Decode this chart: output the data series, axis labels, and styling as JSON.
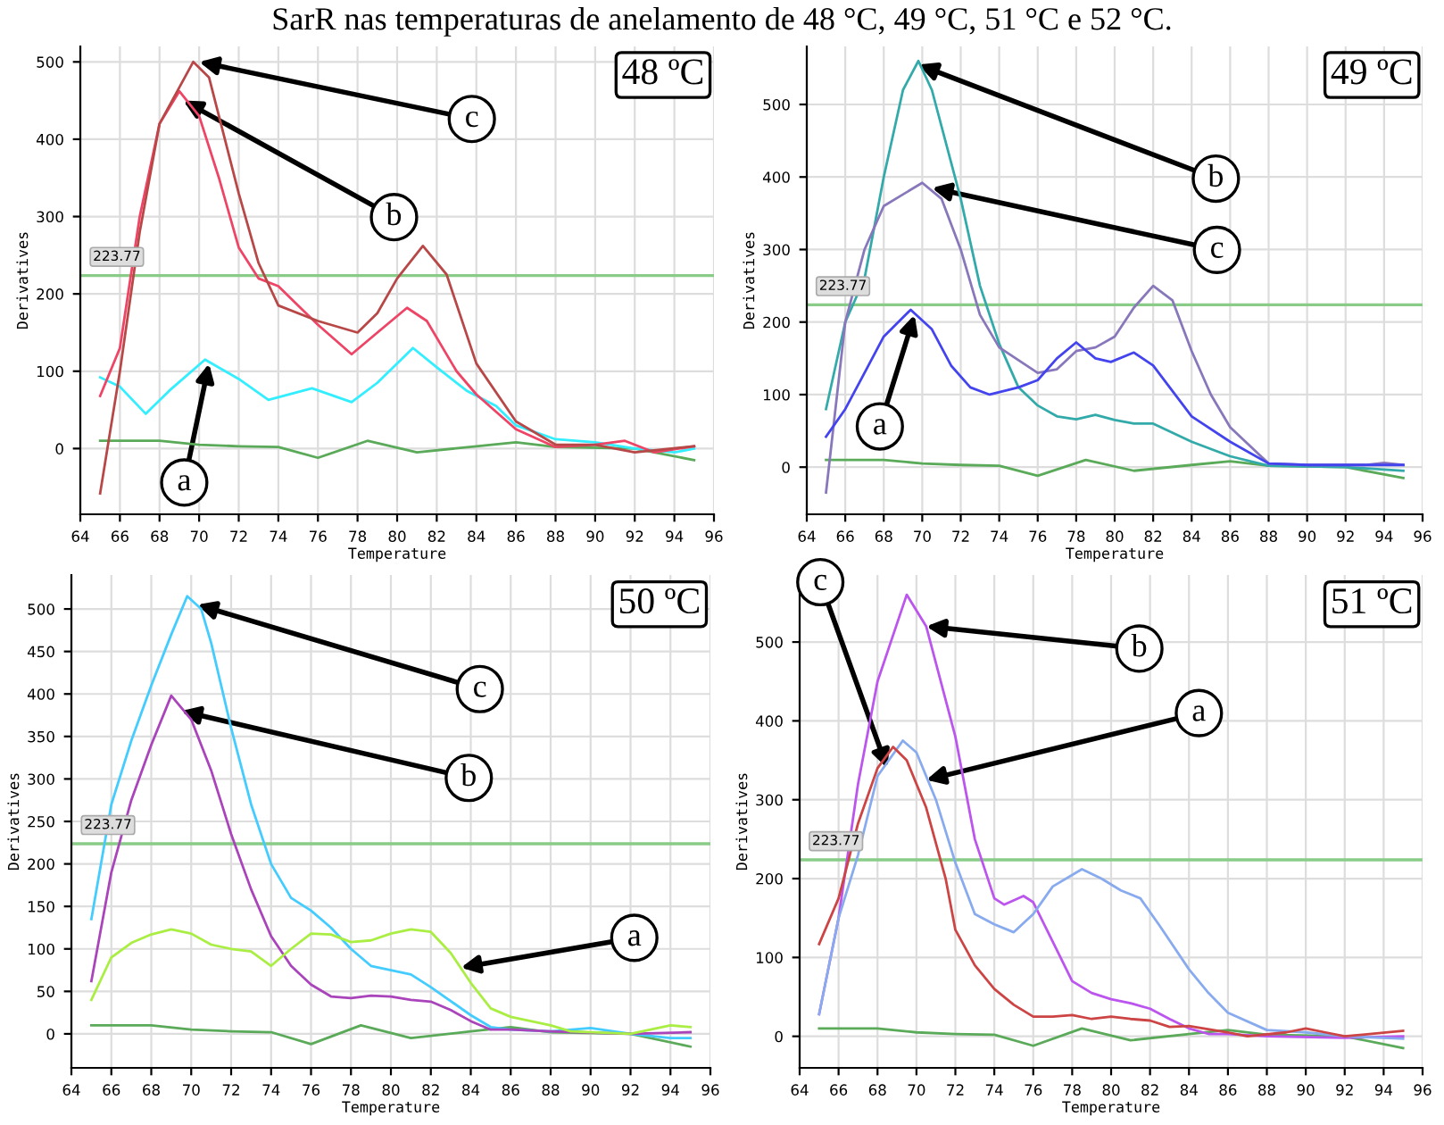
{
  "chart_data": [
    {
      "type": "line",
      "title": "SarR nas temperaturas de anelamento de 48 °C, 49 °C, 51 °C e 52 °C.",
      "xlabel": "Temperature",
      "ylabel": "Derivatives",
      "xlim": [
        64,
        96
      ],
      "xticks": [
        64,
        66,
        68,
        70,
        72,
        74,
        76,
        78,
        80,
        82,
        84,
        86,
        88,
        90,
        92,
        94,
        96
      ],
      "ylim": [
        -85,
        520
      ],
      "yticks": [
        0,
        100,
        200,
        300,
        400,
        500
      ],
      "grid": true,
      "ref_lines": [
        {
          "axis": "y",
          "value": 223.77,
          "label": "223.77",
          "color": "#88cc88"
        }
      ],
      "annotations": [
        "48 ºC",
        {
          "text": "c",
          "x": 70,
          "y": 500
        },
        {
          "text": "b",
          "x": 69.2,
          "y": 450
        },
        {
          "text": "a",
          "x": 70.5,
          "y": 110
        }
      ],
      "series": [
        {
          "color": "#5aaa5a",
          "x": [
            65,
            68,
            70,
            72,
            74,
            76,
            78.5,
            81,
            84,
            86,
            88,
            92,
            95
          ],
          "values": [
            10,
            10,
            5,
            3,
            2,
            -12,
            10,
            -5,
            3,
            8,
            2,
            0,
            -15
          ]
        },
        {
          "color": "#33eeff",
          "x": [
            65,
            66,
            67.3,
            68.5,
            70.3,
            72,
            73.5,
            75.7,
            77.7,
            79,
            80.8,
            82,
            83.5,
            85,
            86,
            88,
            90,
            92,
            94,
            95
          ],
          "values": [
            92,
            80,
            45,
            75,
            115,
            90,
            63,
            78,
            60,
            85,
            130,
            105,
            75,
            55,
            30,
            12,
            8,
            0,
            -5,
            0
          ]
        },
        {
          "color": "#ee4466",
          "x": [
            65,
            66,
            67,
            68,
            69,
            70,
            71,
            72,
            73,
            74,
            75,
            76,
            77.7,
            79,
            80.5,
            81.5,
            83,
            84,
            86,
            88,
            90,
            91.5,
            93,
            95
          ],
          "values": [
            68,
            130,
            300,
            420,
            462,
            430,
            350,
            260,
            220,
            210,
            185,
            160,
            122,
            150,
            182,
            165,
            100,
            70,
            25,
            2,
            5,
            10,
            -5,
            3
          ]
        },
        {
          "color": "#b84848",
          "x": [
            65,
            66,
            67,
            68,
            69.7,
            70.5,
            72,
            73,
            74,
            76,
            78,
            79,
            80,
            81.3,
            82.5,
            84,
            86,
            88,
            90,
            92,
            95
          ],
          "values": [
            -58,
            100,
            280,
            420,
            500,
            480,
            330,
            240,
            185,
            165,
            150,
            175,
            220,
            262,
            225,
            110,
            35,
            5,
            5,
            -5,
            3
          ]
        }
      ]
    },
    {
      "type": "line",
      "xlabel": "Temperature",
      "ylabel": "Derivatives",
      "xlim": [
        64,
        96
      ],
      "xticks": [
        64,
        66,
        68,
        70,
        72,
        74,
        76,
        78,
        80,
        82,
        84,
        86,
        88,
        90,
        92,
        94,
        96
      ],
      "ylim": [
        -65,
        580
      ],
      "yticks": [
        0,
        100,
        200,
        300,
        400,
        500
      ],
      "grid": true,
      "ref_lines": [
        {
          "axis": "y",
          "value": 223.77,
          "label": "223.77",
          "color": "#88cc88"
        }
      ],
      "annotations": [
        "49 ºC",
        {
          "text": "b",
          "x": 69.8,
          "y": 555
        },
        {
          "text": "c",
          "x": 70.5,
          "y": 385
        },
        {
          "text": "a",
          "x": 69.6,
          "y": 210
        }
      ],
      "series": [
        {
          "color": "#5aaa5a",
          "x": [
            65,
            68,
            70,
            72,
            74,
            76,
            78.5,
            81,
            84,
            86,
            88,
            92,
            95
          ],
          "values": [
            10,
            10,
            5,
            3,
            2,
            -12,
            10,
            -5,
            3,
            8,
            2,
            0,
            -15
          ]
        },
        {
          "color": "#33aaaa",
          "x": [
            65,
            66,
            67,
            68,
            69,
            69.8,
            70.5,
            72,
            73,
            74,
            75,
            76,
            77,
            78,
            79,
            80,
            81,
            82,
            84,
            86,
            88,
            92,
            95
          ],
          "values": [
            80,
            200,
            260,
            400,
            520,
            560,
            520,
            370,
            250,
            170,
            110,
            85,
            70,
            66,
            72,
            65,
            60,
            60,
            35,
            15,
            2,
            0,
            -5
          ]
        },
        {
          "color": "#8877bb",
          "x": [
            65,
            66,
            67,
            68,
            70,
            71,
            72,
            73,
            74,
            76,
            77,
            78,
            79,
            80,
            81,
            82,
            83,
            84,
            85,
            86,
            88,
            90,
            93,
            94,
            95
          ],
          "values": [
            -35,
            200,
            300,
            360,
            392,
            370,
            300,
            210,
            165,
            130,
            135,
            160,
            165,
            180,
            220,
            250,
            230,
            160,
            100,
            55,
            5,
            3,
            3,
            6,
            3
          ]
        },
        {
          "color": "#4444ee",
          "x": [
            65,
            66,
            67,
            68,
            69.4,
            70.5,
            71.5,
            72.5,
            73.5,
            75,
            76,
            77,
            78,
            79,
            79.8,
            81,
            82,
            84,
            86,
            88,
            90,
            95
          ],
          "values": [
            42,
            80,
            130,
            180,
            217,
            190,
            140,
            110,
            100,
            110,
            120,
            150,
            172,
            150,
            145,
            158,
            140,
            70,
            35,
            5,
            3,
            3
          ]
        }
      ]
    },
    {
      "type": "line",
      "xlabel": "Temperature",
      "ylabel": "Derivatives",
      "xlim": [
        64,
        96
      ],
      "xticks": [
        64,
        66,
        68,
        70,
        72,
        74,
        76,
        78,
        80,
        82,
        84,
        86,
        88,
        90,
        92,
        94,
        96
      ],
      "ylim": [
        -40,
        540
      ],
      "yticks": [
        0,
        50,
        100,
        150,
        200,
        250,
        300,
        350,
        400,
        450,
        500
      ],
      "grid": true,
      "ref_lines": [
        {
          "axis": "y",
          "value": 223.77,
          "label": "223.77",
          "color": "#88cc88"
        }
      ],
      "annotations": [
        "50 ºC",
        {
          "text": "c",
          "x": 70.3,
          "y": 505
        },
        {
          "text": "b",
          "x": 69.5,
          "y": 380
        },
        {
          "text": "a",
          "x": 83.5,
          "y": 78
        }
      ],
      "series": [
        {
          "color": "#5aaa5a",
          "x": [
            65,
            68,
            70,
            72,
            74,
            76,
            78.5,
            81,
            84,
            86,
            88,
            92,
            95
          ],
          "values": [
            10,
            10,
            5,
            3,
            2,
            -12,
            10,
            -5,
            3,
            8,
            2,
            0,
            -15
          ]
        },
        {
          "color": "#44ccff",
          "x": [
            65,
            66,
            67,
            68,
            69,
            69.8,
            70.5,
            71,
            72,
            73,
            74,
            75,
            76,
            77,
            78,
            79,
            80,
            81,
            82,
            84,
            85,
            86,
            88,
            90,
            92,
            94,
            95
          ],
          "values": [
            135,
            270,
            345,
            410,
            470,
            515,
            500,
            460,
            360,
            270,
            200,
            160,
            145,
            125,
            100,
            80,
            75,
            70,
            55,
            22,
            8,
            5,
            3,
            7,
            0,
            -5,
            -5
          ]
        },
        {
          "color": "#aa44bb",
          "x": [
            65,
            66,
            67,
            68,
            69,
            70,
            71,
            72,
            73,
            74,
            75,
            76,
            77,
            78,
            79,
            80,
            81,
            82,
            83,
            84,
            85,
            86,
            88,
            92,
            95
          ],
          "values": [
            62,
            190,
            275,
            340,
            398,
            370,
            310,
            235,
            170,
            115,
            80,
            58,
            44,
            42,
            45,
            44,
            40,
            38,
            28,
            15,
            5,
            5,
            3,
            0,
            2
          ]
        },
        {
          "color": "#aaee44",
          "x": [
            65,
            66,
            67,
            68,
            69,
            70,
            71,
            72,
            73,
            74,
            75,
            76,
            77,
            78,
            79,
            80,
            81,
            82,
            83,
            84,
            85,
            86,
            88,
            89,
            92,
            94,
            95
          ],
          "values": [
            40,
            90,
            107,
            117,
            123,
            118,
            105,
            100,
            97,
            80,
            100,
            118,
            117,
            108,
            110,
            118,
            123,
            120,
            95,
            60,
            30,
            20,
            10,
            3,
            0,
            10,
            8
          ]
        }
      ]
    },
    {
      "type": "line",
      "xlabel": "Temperature",
      "ylabel": "Derivatives",
      "xlim": [
        64,
        96
      ],
      "xticks": [
        64,
        66,
        68,
        70,
        72,
        74,
        76,
        78,
        80,
        82,
        84,
        86,
        88,
        90,
        92,
        94,
        96
      ],
      "ylim": [
        -40,
        585
      ],
      "yticks": [
        0,
        100,
        200,
        300,
        400,
        500
      ],
      "grid": true,
      "ref_lines": [
        {
          "axis": "y",
          "value": 223.77,
          "label": "223.77",
          "color": "#88cc88"
        }
      ],
      "annotations": [
        "51 ºC",
        {
          "text": "b",
          "x": 70.5,
          "y": 520
        },
        {
          "text": "a",
          "x": 70.5,
          "y": 325
        },
        {
          "text": "c",
          "x": 68.5,
          "y": 340
        }
      ],
      "series": [
        {
          "color": "#5aaa5a",
          "x": [
            65,
            68,
            70,
            72,
            74,
            76,
            78.5,
            81,
            84,
            86,
            88,
            92,
            95
          ],
          "values": [
            10,
            10,
            5,
            3,
            2,
            -12,
            10,
            -5,
            3,
            8,
            2,
            0,
            -15
          ]
        },
        {
          "color": "#bb55ee",
          "x": [
            65,
            66,
            67,
            68,
            69.5,
            70.5,
            72,
            73,
            74,
            74.5,
            75.5,
            76,
            77,
            78,
            79,
            80,
            81,
            82,
            83,
            84,
            85,
            86,
            88,
            92,
            95
          ],
          "values": [
            28,
            150,
            320,
            450,
            560,
            520,
            380,
            250,
            175,
            167,
            178,
            170,
            120,
            70,
            55,
            47,
            42,
            35,
            22,
            10,
            3,
            3,
            0,
            -2,
            0
          ]
        },
        {
          "color": "#88aaee",
          "x": [
            65,
            66,
            67,
            68,
            69.3,
            70,
            71,
            72,
            73,
            74,
            75,
            76,
            77,
            78.5,
            79.5,
            80.5,
            81.5,
            82.5,
            84,
            85,
            86,
            88,
            90,
            92,
            95
          ],
          "values": [
            28,
            150,
            230,
            330,
            375,
            360,
            300,
            220,
            155,
            142,
            132,
            155,
            190,
            212,
            200,
            185,
            175,
            140,
            85,
            55,
            30,
            8,
            5,
            0,
            -3
          ]
        },
        {
          "color": "#cc4444",
          "x": [
            65,
            66,
            67,
            68,
            68.8,
            69.5,
            70.5,
            71.5,
            72,
            73,
            74,
            75,
            76,
            77,
            78,
            79,
            80,
            81,
            82,
            83,
            84,
            86,
            87,
            89,
            90,
            91,
            92,
            95
          ],
          "values": [
            117,
            175,
            270,
            340,
            367,
            350,
            290,
            200,
            135,
            90,
            60,
            40,
            25,
            25,
            27,
            22,
            25,
            22,
            20,
            12,
            13,
            5,
            0,
            5,
            10,
            5,
            0,
            7
          ]
        }
      ]
    }
  ]
}
